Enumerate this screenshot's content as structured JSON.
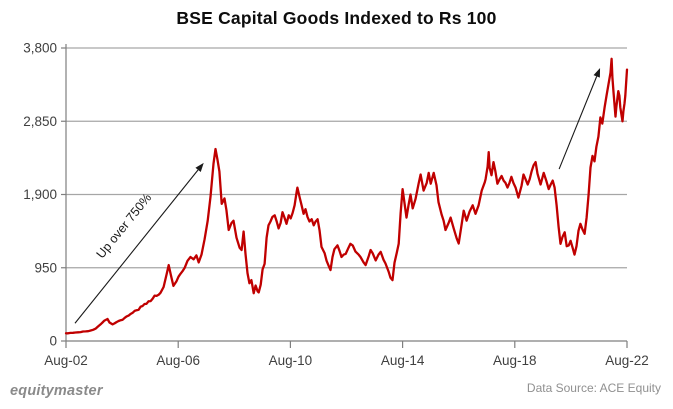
{
  "title": "BSE Capital Goods Indexed to Rs 100",
  "annotation": {
    "text": "Up over 750%"
  },
  "footer": {
    "brand": "equitymaster",
    "source": "Data Source: ACE Equity"
  },
  "colors": {
    "line": "#c00000",
    "grid": "#a6a6a6",
    "axis": "#7f7f7f",
    "tick_label": "#404040",
    "annotation": "#1a1a1a"
  },
  "chart_data": {
    "type": "line",
    "title": "BSE Capital Goods Indexed to Rs 100",
    "xlabel": "",
    "ylabel": "",
    "grid": "horizontal",
    "legend": "none",
    "xlim": [
      2002.58,
      2022.58
    ],
    "ylim": [
      0,
      3800
    ],
    "x_ticks": [
      {
        "label": "Aug-02",
        "value": 2002.58
      },
      {
        "label": "Aug-06",
        "value": 2006.58
      },
      {
        "label": "Aug-10",
        "value": 2010.58
      },
      {
        "label": "Aug-14",
        "value": 2014.58
      },
      {
        "label": "Aug-18",
        "value": 2018.58
      },
      {
        "label": "Aug-22",
        "value": 2022.58
      }
    ],
    "y_ticks": [
      {
        "label": "0",
        "value": 0
      },
      {
        "label": "950",
        "value": 950
      },
      {
        "label": "1,900",
        "value": 1900
      },
      {
        "label": "2,850",
        "value": 2850
      },
      {
        "label": "3,800",
        "value": 3800
      }
    ],
    "arrows": [
      {
        "from": [
          2002.9,
          230
        ],
        "to": [
          2007.49,
          2310
        ]
      },
      {
        "from": [
          2020.16,
          2230
        ],
        "to": [
          2021.62,
          3540
        ]
      }
    ],
    "series": [
      {
        "name": "BSE Capital Goods (indexed to Rs 100, Aug-02)",
        "color": "#c00000",
        "points": [
          [
            2002.58,
            100
          ],
          [
            2002.74,
            105
          ],
          [
            2002.92,
            110
          ],
          [
            2003.1,
            116
          ],
          [
            2003.28,
            125
          ],
          [
            2003.46,
            136
          ],
          [
            2003.63,
            160
          ],
          [
            2003.81,
            215
          ],
          [
            2003.95,
            265
          ],
          [
            2004.06,
            285
          ],
          [
            2004.13,
            240
          ],
          [
            2004.24,
            215
          ],
          [
            2004.38,
            245
          ],
          [
            2004.53,
            270
          ],
          [
            2004.67,
            300
          ],
          [
            2004.81,
            330
          ],
          [
            2004.95,
            365
          ],
          [
            2005.1,
            400
          ],
          [
            2005.24,
            445
          ],
          [
            2005.38,
            480
          ],
          [
            2005.52,
            515
          ],
          [
            2005.67,
            550
          ],
          [
            2005.81,
            585
          ],
          [
            2005.95,
            625
          ],
          [
            2006.06,
            700
          ],
          [
            2006.17,
            870
          ],
          [
            2006.24,
            985
          ],
          [
            2006.31,
            870
          ],
          [
            2006.41,
            715
          ],
          [
            2006.52,
            775
          ],
          [
            2006.66,
            870
          ],
          [
            2006.81,
            950
          ],
          [
            2006.91,
            1040
          ],
          [
            2007.02,
            1090
          ],
          [
            2007.13,
            1060
          ],
          [
            2007.23,
            1110
          ],
          [
            2007.31,
            1020
          ],
          [
            2007.41,
            1120
          ],
          [
            2007.52,
            1320
          ],
          [
            2007.63,
            1560
          ],
          [
            2007.73,
            1870
          ],
          [
            2007.84,
            2300
          ],
          [
            2007.91,
            2490
          ],
          [
            2007.98,
            2350
          ],
          [
            2008.05,
            2200
          ],
          [
            2008.13,
            1780
          ],
          [
            2008.23,
            1850
          ],
          [
            2008.3,
            1700
          ],
          [
            2008.38,
            1440
          ],
          [
            2008.48,
            1530
          ],
          [
            2008.55,
            1560
          ],
          [
            2008.66,
            1340
          ],
          [
            2008.77,
            1210
          ],
          [
            2008.84,
            1180
          ],
          [
            2008.91,
            1420
          ],
          [
            2008.98,
            1130
          ],
          [
            2009.05,
            880
          ],
          [
            2009.12,
            750
          ],
          [
            2009.19,
            790
          ],
          [
            2009.27,
            620
          ],
          [
            2009.34,
            720
          ],
          [
            2009.41,
            645
          ],
          [
            2009.45,
            630
          ],
          [
            2009.52,
            730
          ],
          [
            2009.59,
            930
          ],
          [
            2009.66,
            1000
          ],
          [
            2009.73,
            1340
          ],
          [
            2009.8,
            1500
          ],
          [
            2009.87,
            1550
          ],
          [
            2009.94,
            1610
          ],
          [
            2010.02,
            1630
          ],
          [
            2010.09,
            1550
          ],
          [
            2010.16,
            1460
          ],
          [
            2010.23,
            1530
          ],
          [
            2010.3,
            1670
          ],
          [
            2010.37,
            1600
          ],
          [
            2010.44,
            1520
          ],
          [
            2010.52,
            1630
          ],
          [
            2010.59,
            1590
          ],
          [
            2010.66,
            1660
          ],
          [
            2010.73,
            1760
          ],
          [
            2010.8,
            1930
          ],
          [
            2010.83,
            1990
          ],
          [
            2010.91,
            1860
          ],
          [
            2010.98,
            1760
          ],
          [
            2011.05,
            1650
          ],
          [
            2011.12,
            1710
          ],
          [
            2011.19,
            1610
          ],
          [
            2011.26,
            1550
          ],
          [
            2011.34,
            1580
          ],
          [
            2011.41,
            1500
          ],
          [
            2011.48,
            1550
          ],
          [
            2011.55,
            1580
          ],
          [
            2011.62,
            1430
          ],
          [
            2011.69,
            1220
          ],
          [
            2011.8,
            1140
          ],
          [
            2011.87,
            1040
          ],
          [
            2011.94,
            980
          ],
          [
            2012.01,
            920
          ],
          [
            2012.08,
            1090
          ],
          [
            2012.15,
            1190
          ],
          [
            2012.26,
            1240
          ],
          [
            2012.33,
            1170
          ],
          [
            2012.4,
            1090
          ],
          [
            2012.48,
            1120
          ],
          [
            2012.55,
            1130
          ],
          [
            2012.65,
            1210
          ],
          [
            2012.72,
            1260
          ],
          [
            2012.8,
            1240
          ],
          [
            2012.9,
            1160
          ],
          [
            2013.01,
            1120
          ],
          [
            2013.08,
            1090
          ],
          [
            2013.19,
            1020
          ],
          [
            2013.26,
            985
          ],
          [
            2013.37,
            1100
          ],
          [
            2013.44,
            1180
          ],
          [
            2013.51,
            1140
          ],
          [
            2013.62,
            1045
          ],
          [
            2013.72,
            1120
          ],
          [
            2013.8,
            1155
          ],
          [
            2013.9,
            1055
          ],
          [
            2013.97,
            1005
          ],
          [
            2014.08,
            900
          ],
          [
            2014.15,
            820
          ],
          [
            2014.22,
            790
          ],
          [
            2014.29,
            1015
          ],
          [
            2014.37,
            1140
          ],
          [
            2014.44,
            1260
          ],
          [
            2014.51,
            1655
          ],
          [
            2014.58,
            1970
          ],
          [
            2014.65,
            1780
          ],
          [
            2014.72,
            1600
          ],
          [
            2014.79,
            1760
          ],
          [
            2014.86,
            1900
          ],
          [
            2014.94,
            1720
          ],
          [
            2015.04,
            1840
          ],
          [
            2015.15,
            2040
          ],
          [
            2015.22,
            2160
          ],
          [
            2015.33,
            1950
          ],
          [
            2015.44,
            2050
          ],
          [
            2015.51,
            2180
          ],
          [
            2015.58,
            2040
          ],
          [
            2015.69,
            2180
          ],
          [
            2015.79,
            2020
          ],
          [
            2015.86,
            1800
          ],
          [
            2015.97,
            1640
          ],
          [
            2016.04,
            1560
          ],
          [
            2016.11,
            1440
          ],
          [
            2016.22,
            1530
          ],
          [
            2016.29,
            1600
          ],
          [
            2016.4,
            1460
          ],
          [
            2016.51,
            1330
          ],
          [
            2016.58,
            1265
          ],
          [
            2016.68,
            1500
          ],
          [
            2016.76,
            1690
          ],
          [
            2016.86,
            1560
          ],
          [
            2016.97,
            1680
          ],
          [
            2017.08,
            1760
          ],
          [
            2017.18,
            1650
          ],
          [
            2017.29,
            1760
          ],
          [
            2017.4,
            1950
          ],
          [
            2017.51,
            2060
          ],
          [
            2017.54,
            2100
          ],
          [
            2017.61,
            2260
          ],
          [
            2017.65,
            2450
          ],
          [
            2017.68,
            2250
          ],
          [
            2017.75,
            2150
          ],
          [
            2017.82,
            2320
          ],
          [
            2017.89,
            2200
          ],
          [
            2017.96,
            2040
          ],
          [
            2018.04,
            2100
          ],
          [
            2018.11,
            2140
          ],
          [
            2018.18,
            2080
          ],
          [
            2018.25,
            2050
          ],
          [
            2018.32,
            1990
          ],
          [
            2018.39,
            2050
          ],
          [
            2018.46,
            2130
          ],
          [
            2018.53,
            2050
          ],
          [
            2018.61,
            1990
          ],
          [
            2018.71,
            1860
          ],
          [
            2018.82,
            2010
          ],
          [
            2018.89,
            2160
          ],
          [
            2018.96,
            2100
          ],
          [
            2019.04,
            2030
          ],
          [
            2019.11,
            2100
          ],
          [
            2019.18,
            2200
          ],
          [
            2019.25,
            2280
          ],
          [
            2019.32,
            2320
          ],
          [
            2019.39,
            2170
          ],
          [
            2019.5,
            2030
          ],
          [
            2019.61,
            2180
          ],
          [
            2019.71,
            2070
          ],
          [
            2019.79,
            1970
          ],
          [
            2019.86,
            2030
          ],
          [
            2019.93,
            2080
          ],
          [
            2020.0,
            1990
          ],
          [
            2020.07,
            1760
          ],
          [
            2020.14,
            1480
          ],
          [
            2020.21,
            1260
          ],
          [
            2020.28,
            1350
          ],
          [
            2020.36,
            1410
          ],
          [
            2020.43,
            1230
          ],
          [
            2020.5,
            1240
          ],
          [
            2020.57,
            1300
          ],
          [
            2020.64,
            1210
          ],
          [
            2020.71,
            1120
          ],
          [
            2020.78,
            1230
          ],
          [
            2020.85,
            1430
          ],
          [
            2020.92,
            1520
          ],
          [
            2020.99,
            1450
          ],
          [
            2021.07,
            1390
          ],
          [
            2021.14,
            1600
          ],
          [
            2021.21,
            1900
          ],
          [
            2021.28,
            2250
          ],
          [
            2021.35,
            2400
          ],
          [
            2021.42,
            2330
          ],
          [
            2021.49,
            2520
          ],
          [
            2021.56,
            2650
          ],
          [
            2021.63,
            2900
          ],
          [
            2021.7,
            2820
          ],
          [
            2021.78,
            3030
          ],
          [
            2021.85,
            3180
          ],
          [
            2021.92,
            3330
          ],
          [
            2021.99,
            3480
          ],
          [
            2022.03,
            3660
          ],
          [
            2022.06,
            3420
          ],
          [
            2022.1,
            3230
          ],
          [
            2022.17,
            2910
          ],
          [
            2022.2,
            3030
          ],
          [
            2022.27,
            3240
          ],
          [
            2022.31,
            3180
          ],
          [
            2022.34,
            3030
          ],
          [
            2022.42,
            2850
          ],
          [
            2022.45,
            2980
          ],
          [
            2022.49,
            3080
          ],
          [
            2022.52,
            3180
          ],
          [
            2022.58,
            3520
          ]
        ]
      }
    ]
  }
}
